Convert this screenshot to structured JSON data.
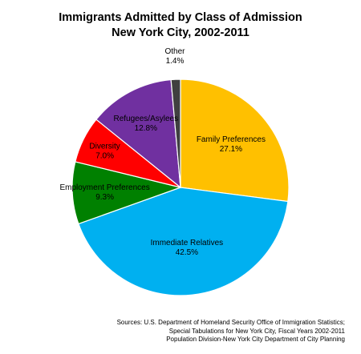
{
  "chart_data": {
    "type": "pie",
    "title_lines": [
      "Immigrants Admitted by Class of Admission",
      "New York City, 2002-2011"
    ],
    "slices": [
      {
        "label": "Family Preferences",
        "value_label": "27.1%",
        "value": 27.1,
        "color": "#FFC000"
      },
      {
        "label": "Immediate Relatives",
        "value_label": "42.5%",
        "value": 42.5,
        "color": "#00B0F0"
      },
      {
        "label": "Employment Preferences",
        "value_label": "9.3%",
        "value": 9.3,
        "color": "#008000"
      },
      {
        "label": "Diversity",
        "value_label": "7.0%",
        "value": 7.0,
        "color": "#FF0000"
      },
      {
        "label": "Refugees/Asylees",
        "value_label": "12.8%",
        "value": 12.8,
        "color": "#7030A0"
      },
      {
        "label": "Other",
        "value_label": "1.4%",
        "value": 1.4,
        "color": "#404040"
      }
    ],
    "start": "12 o'clock",
    "direction": "clockwise",
    "legend": "none"
  },
  "source_lines": [
    "Sources: U.S. Department of Homeland Security Office of Immigration Statistics;",
    "Special Tabulations for New York City, Fiscal Years 2002-2011",
    "Population Division-New York City Department of City Planning"
  ]
}
